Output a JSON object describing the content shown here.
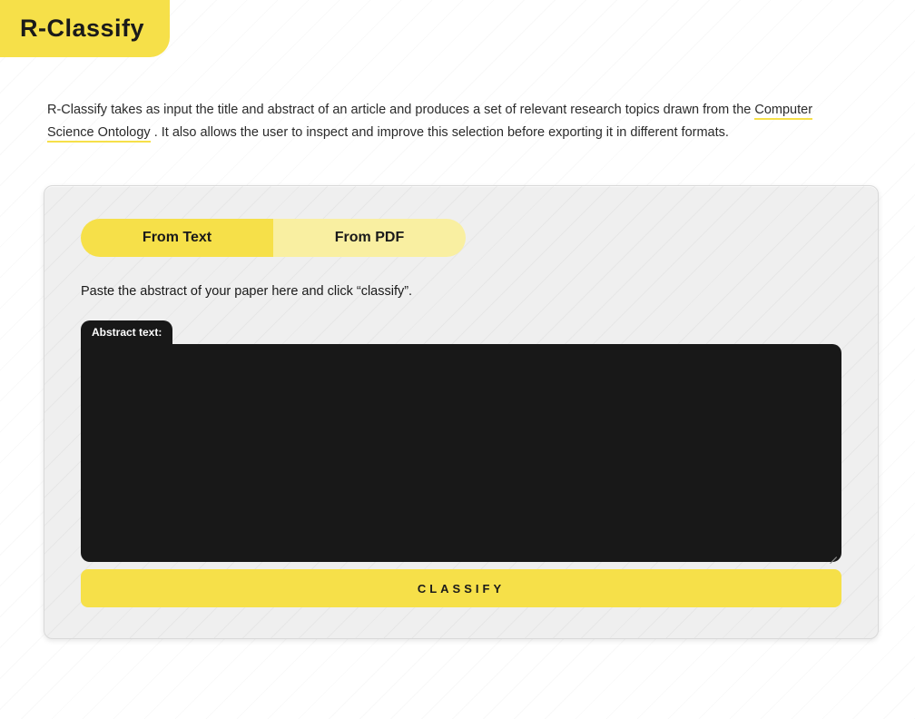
{
  "colors": {
    "brand_yellow": "#f6e049",
    "brand_yellow_light": "#f9efa1",
    "panel_bg": "#efefef",
    "panel_border": "#d9d9d9",
    "text": "#1a1a1a",
    "dark_surface": "#181818",
    "page_bg": "#ffffff"
  },
  "header": {
    "logo_text": "R-Classify"
  },
  "intro": {
    "prefix": " R-Classify takes as input the title and abstract of an article and produces a set of relevant research topics drawn from the ",
    "link_text": "Computer Science Ontology",
    "suffix": ". It also allows the user to inspect and improve this selection before exporting it in different formats."
  },
  "panel": {
    "tabs": [
      {
        "label": "From Text",
        "active": true
      },
      {
        "label": "From PDF",
        "active": false
      }
    ],
    "instruction": "Paste the abstract of your paper here and click “classify”.",
    "textarea": {
      "label": "Abstract text:",
      "value": "",
      "placeholder": ""
    },
    "classify_button_label": "CLASSIFY"
  }
}
